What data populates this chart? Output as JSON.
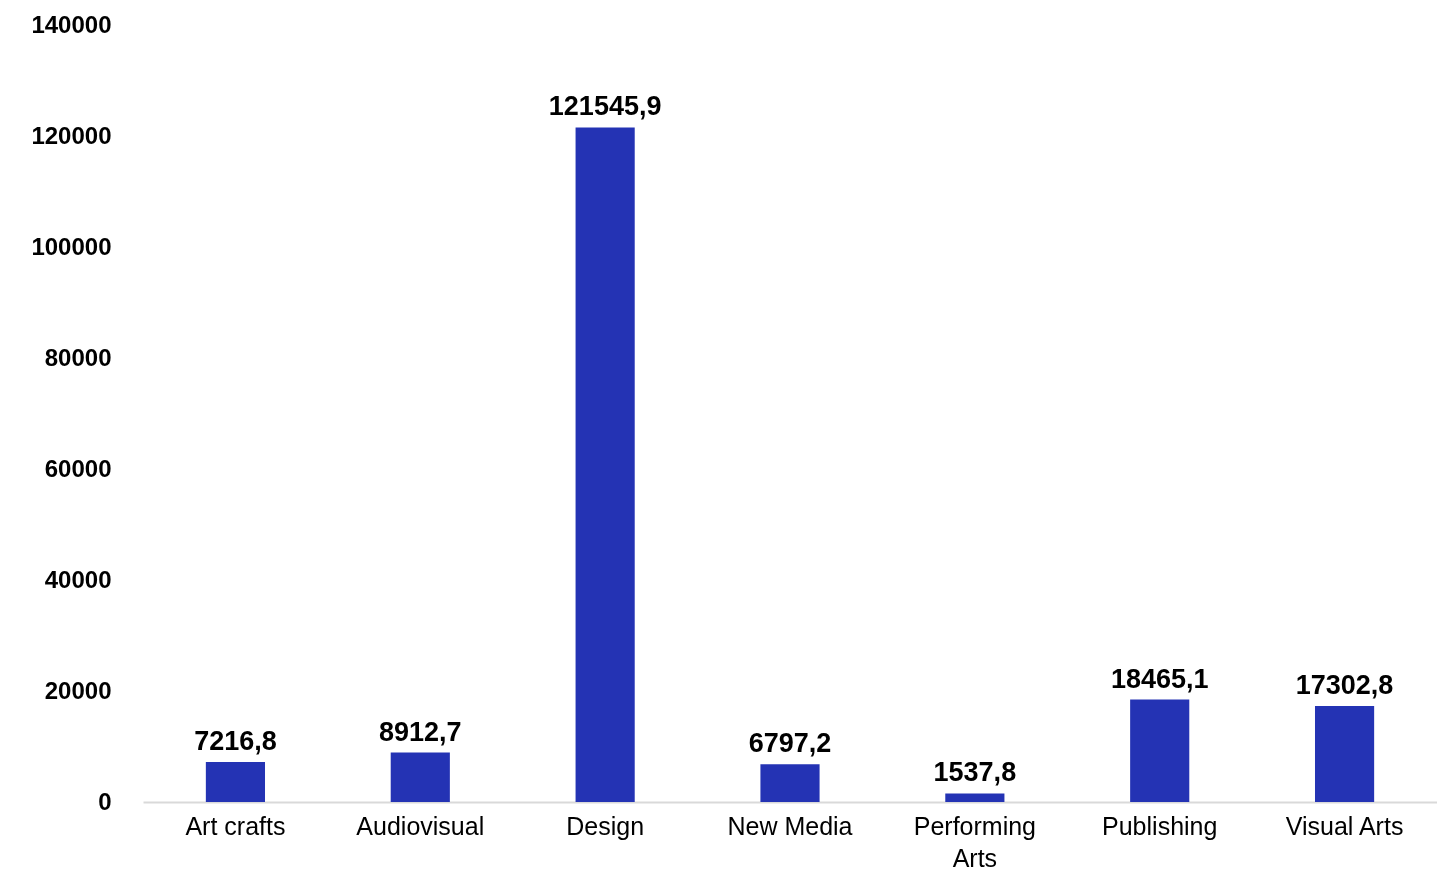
{
  "chart_data": {
    "type": "bar",
    "categories": [
      "Art crafts",
      "Audiovisual",
      "Design",
      "New Media",
      "Performing Arts",
      "Publishing",
      "Visual Arts"
    ],
    "values": [
      7216.8,
      8912.7,
      121545.9,
      6797.2,
      1537.8,
      18465.1,
      17302.8
    ],
    "value_labels": [
      "7216,8",
      "8912,7",
      "121545,9",
      "6797,2",
      "1537,8",
      "18465,1",
      "17302,8"
    ],
    "color": "#2433b4",
    "ylim": [
      0,
      140000
    ],
    "yticks": [
      0,
      20000,
      40000,
      60000,
      80000,
      100000,
      120000,
      140000
    ],
    "grid": false
  }
}
